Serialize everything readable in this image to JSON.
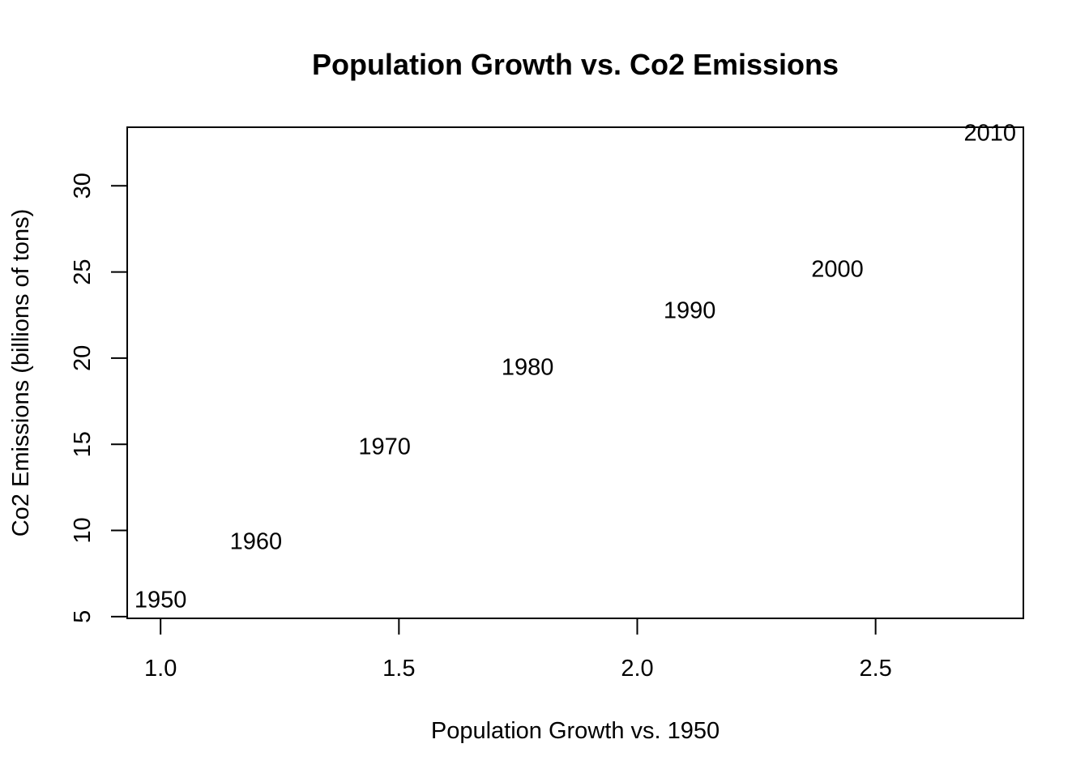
{
  "chart_data": {
    "type": "scatter",
    "title": "Population Growth vs. Co2 Emissions",
    "xlabel": "Population Growth vs. 1950",
    "ylabel": "Co2 Emissions (billions of tons)",
    "xlim": [
      0.93,
      2.81
    ],
    "ylim": [
      4.9,
      33.4
    ],
    "x_ticks": [
      1.0,
      1.5,
      2.0,
      2.5
    ],
    "x_tick_labels": [
      "1.0",
      "1.5",
      "2.0",
      "2.5"
    ],
    "y_ticks": [
      5,
      10,
      15,
      20,
      25,
      30
    ],
    "y_tick_labels": [
      "5",
      "10",
      "15",
      "20",
      "25",
      "30"
    ],
    "grid": false,
    "points": [
      {
        "label": "1950",
        "x": 1.0,
        "y": 6.0
      },
      {
        "label": "1960",
        "x": 1.2,
        "y": 9.4
      },
      {
        "label": "1970",
        "x": 1.47,
        "y": 14.9
      },
      {
        "label": "1980",
        "x": 1.77,
        "y": 19.5
      },
      {
        "label": "1990",
        "x": 2.11,
        "y": 22.8
      },
      {
        "label": "2000",
        "x": 2.42,
        "y": 25.2
      },
      {
        "label": "2010",
        "x": 2.74,
        "y": 33.1
      }
    ]
  }
}
